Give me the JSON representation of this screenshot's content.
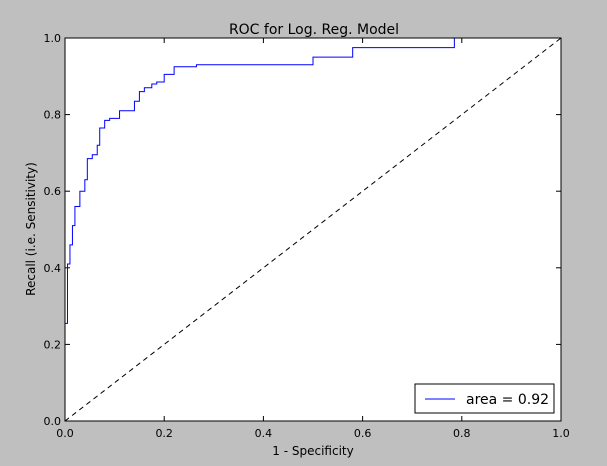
{
  "chart_data": {
    "type": "line",
    "title": "ROC for Log. Reg. Model",
    "xlabel": "1 - Specificity",
    "ylabel": "Recall (i.e. Sensitivity)",
    "xlim": [
      0.0,
      1.0
    ],
    "ylim": [
      0.0,
      1.0
    ],
    "xticks": [
      "0.0",
      "0.2",
      "0.4",
      "0.6",
      "0.8",
      "1.0"
    ],
    "yticks": [
      "0.0",
      "0.2",
      "0.4",
      "0.6",
      "0.8",
      "1.0"
    ],
    "grid": false,
    "legend_position": "bottom-right",
    "series": [
      {
        "name": "area = 0.92",
        "color": "#0000ff",
        "style": "solid",
        "x": [
          0.0,
          0.0,
          0.005,
          0.005,
          0.01,
          0.01,
          0.015,
          0.015,
          0.02,
          0.02,
          0.03,
          0.03,
          0.04,
          0.04,
          0.045,
          0.045,
          0.055,
          0.055,
          0.065,
          0.065,
          0.07,
          0.07,
          0.08,
          0.08,
          0.09,
          0.09,
          0.11,
          0.11,
          0.14,
          0.14,
          0.15,
          0.15,
          0.16,
          0.16,
          0.175,
          0.175,
          0.185,
          0.185,
          0.2,
          0.2,
          0.22,
          0.22,
          0.265,
          0.265,
          0.5,
          0.5,
          0.58,
          0.58,
          0.785,
          0.785,
          1.0
        ],
        "y": [
          0.0,
          0.255,
          0.255,
          0.41,
          0.41,
          0.46,
          0.46,
          0.51,
          0.51,
          0.56,
          0.56,
          0.6,
          0.6,
          0.63,
          0.63,
          0.685,
          0.685,
          0.695,
          0.695,
          0.72,
          0.72,
          0.765,
          0.765,
          0.785,
          0.785,
          0.79,
          0.79,
          0.81,
          0.81,
          0.835,
          0.835,
          0.86,
          0.86,
          0.87,
          0.87,
          0.88,
          0.88,
          0.885,
          0.885,
          0.905,
          0.905,
          0.925,
          0.925,
          0.93,
          0.93,
          0.95,
          0.95,
          0.975,
          0.975,
          1.0,
          1.0
        ]
      },
      {
        "name": "",
        "color": "#000000",
        "style": "dashed",
        "x": [
          0.0,
          1.0
        ],
        "y": [
          0.0,
          1.0
        ]
      }
    ]
  }
}
